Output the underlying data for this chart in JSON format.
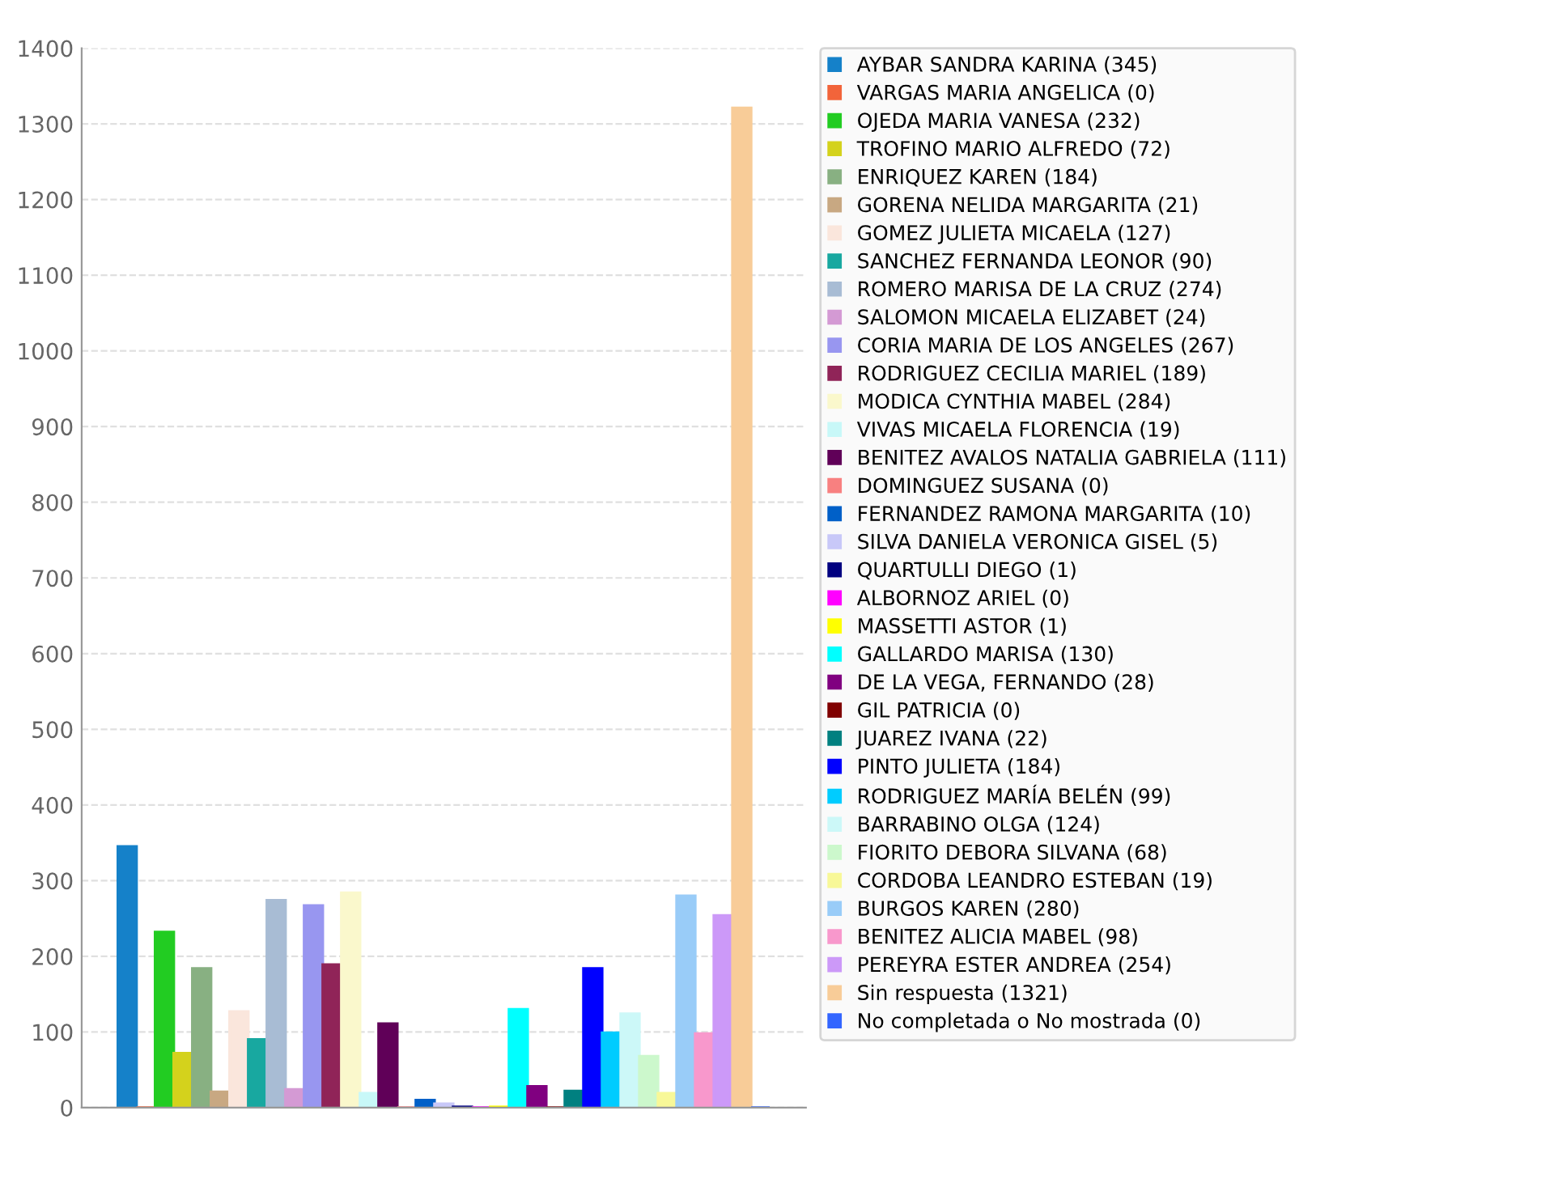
{
  "chart_data": {
    "type": "bar",
    "categories": [
      null
    ],
    "ylim": [
      0,
      1400
    ],
    "yticks": [
      0,
      100,
      200,
      300,
      400,
      500,
      600,
      700,
      800,
      900,
      1000,
      1100,
      1200,
      1300,
      1400
    ],
    "grid": "y",
    "legend": "right",
    "series": [
      {
        "name": "AYBAR SANDRA KARINA (345)",
        "color": "#1581c9",
        "values": [
          345
        ]
      },
      {
        "name": "VARGAS MARIA ANGELICA (0)",
        "color": "#f2643a",
        "values": [
          0
        ]
      },
      {
        "name": "OJEDA MARIA VANESA (232)",
        "color": "#22cc22",
        "values": [
          232
        ]
      },
      {
        "name": "TROFINO MARIO ALFREDO (72)",
        "color": "#d4d21c",
        "values": [
          72
        ]
      },
      {
        "name": "ENRIQUEZ KAREN (184)",
        "color": "#88b082",
        "values": [
          184
        ]
      },
      {
        "name": "GORENA NELIDA MARGARITA (21)",
        "color": "#c8a882",
        "values": [
          21
        ]
      },
      {
        "name": "GOMEZ JULIETA MICAELA (127)",
        "color": "#fae6dc",
        "values": [
          127
        ]
      },
      {
        "name": "SANCHEZ FERNANDA LEONOR (90)",
        "color": "#18a8a0",
        "values": [
          90
        ]
      },
      {
        "name": "ROMERO MARISA DE LA CRUZ (274)",
        "color": "#a8bcd4",
        "values": [
          274
        ]
      },
      {
        "name": "SALOMON MICAELA ELIZABET (24)",
        "color": "#d49ad4",
        "values": [
          24
        ]
      },
      {
        "name": "CORIA MARIA DE LOS ANGELES (267)",
        "color": "#9896f0",
        "values": [
          267
        ]
      },
      {
        "name": "RODRIGUEZ CECILIA MARIEL (189)",
        "color": "#902458",
        "values": [
          189
        ]
      },
      {
        "name": "MODICA CYNTHIA MABEL (284)",
        "color": "#faf8cc",
        "values": [
          284
        ]
      },
      {
        "name": "VIVAS MICAELA FLORENCIA (19)",
        "color": "#c8f8f8",
        "values": [
          19
        ]
      },
      {
        "name": "BENITEZ AVALOS NATALIA GABRIELA (111)",
        "color": "#600058",
        "values": [
          111
        ]
      },
      {
        "name": "DOMINGUEZ SUSANA (0)",
        "color": "#f88080",
        "values": [
          0
        ]
      },
      {
        "name": "FERNANDEZ RAMONA MARGARITA (10)",
        "color": "#0060c8",
        "values": [
          10
        ]
      },
      {
        "name": "SILVA DANIELA VERONICA GISEL (5)",
        "color": "#c8c8f8",
        "values": [
          5
        ]
      },
      {
        "name": "QUARTULLI DIEGO (1)",
        "color": "#000080",
        "values": [
          1
        ]
      },
      {
        "name": "ALBORNOZ ARIEL (0)",
        "color": "#ff00ff",
        "values": [
          0
        ]
      },
      {
        "name": "MASSETTI ASTOR (1)",
        "color": "#ffff00",
        "values": [
          1
        ]
      },
      {
        "name": "GALLARDO MARISA (130)",
        "color": "#00ffff",
        "values": [
          130
        ]
      },
      {
        "name": "DE LA VEGA, FERNANDO (28)",
        "color": "#800080",
        "values": [
          28
        ]
      },
      {
        "name": "GIL PATRICIA (0)",
        "color": "#800000",
        "values": [
          0
        ]
      },
      {
        "name": "JUAREZ IVANA (22)",
        "color": "#008080",
        "values": [
          22
        ]
      },
      {
        "name": "PINTO JULIETA (184)",
        "color": "#0000ff",
        "values": [
          184
        ]
      },
      {
        "name": "RODRIGUEZ MARÍA BELÉN (99)",
        "color": "#00ccff",
        "values": [
          99
        ]
      },
      {
        "name": "BARRABINO OLGA (124)",
        "color": "#ccf8f8",
        "values": [
          124
        ]
      },
      {
        "name": "FIORITO DEBORA SILVANA (68)",
        "color": "#ccf8cc",
        "values": [
          68
        ]
      },
      {
        "name": "CORDOBA LEANDRO ESTEBAN (19)",
        "color": "#f8f898",
        "values": [
          19
        ]
      },
      {
        "name": "BURGOS KAREN (280)",
        "color": "#99ccf8",
        "values": [
          280
        ]
      },
      {
        "name": "BENITEZ ALICIA MABEL (98)",
        "color": "#f898cc",
        "values": [
          98
        ]
      },
      {
        "name": "PEREYRA ESTER ANDREA (254)",
        "color": "#cc99f8",
        "values": [
          254
        ]
      },
      {
        "name": "Sin respuesta (1321)",
        "color": "#f8cc98",
        "values": [
          1321
        ]
      },
      {
        "name": "No completada o No mostrada (0)",
        "color": "#3366ff",
        "values": [
          0
        ]
      }
    ]
  }
}
